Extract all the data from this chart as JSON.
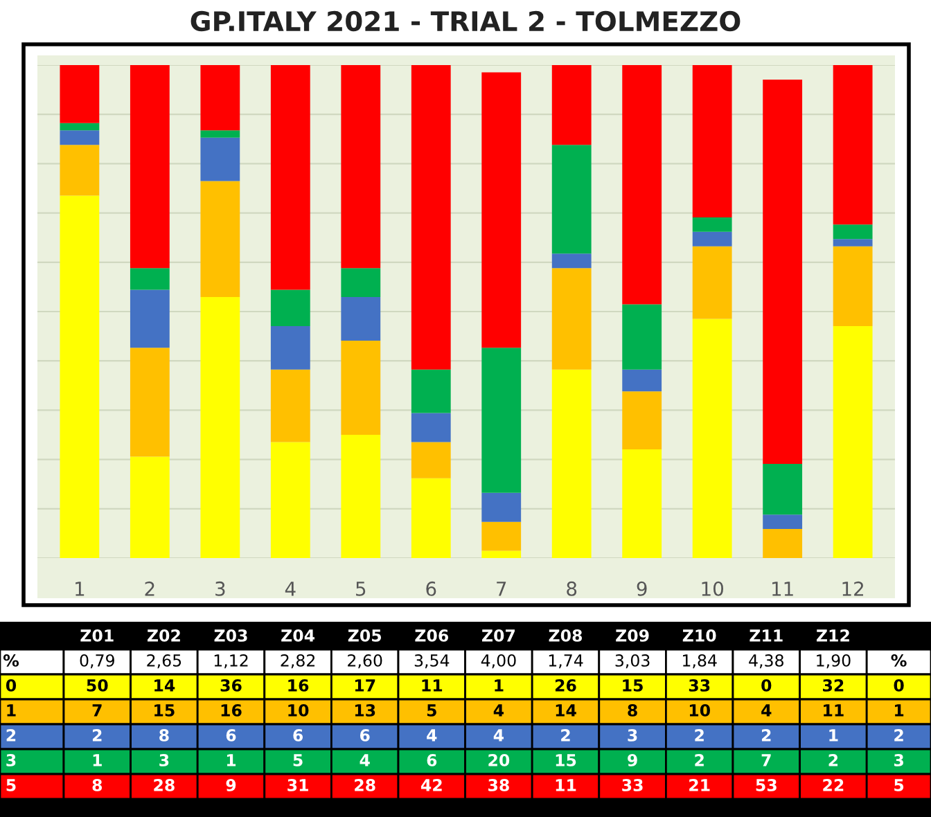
{
  "chart_data": {
    "type": "bar",
    "title": "GP.ITALY 2021 - TRIAL 2 - TOLMEZZO",
    "categories": [
      "1",
      "2",
      "3",
      "4",
      "5",
      "6",
      "7",
      "8",
      "9",
      "10",
      "11",
      "12"
    ],
    "stacked": true,
    "series": [
      {
        "name": "0",
        "color": "#ffff00",
        "values": [
          50,
          14,
          36,
          16,
          17,
          11,
          1,
          26,
          15,
          33,
          0,
          32
        ]
      },
      {
        "name": "1",
        "color": "#ffc000",
        "values": [
          7,
          15,
          16,
          10,
          13,
          5,
          4,
          14,
          8,
          10,
          4,
          11
        ]
      },
      {
        "name": "2",
        "color": "#4472c4",
        "values": [
          2,
          8,
          6,
          6,
          6,
          4,
          4,
          2,
          3,
          2,
          2,
          1
        ]
      },
      {
        "name": "3",
        "color": "#00b050",
        "values": [
          1,
          3,
          1,
          5,
          4,
          6,
          20,
          15,
          9,
          2,
          7,
          2
        ]
      },
      {
        "name": "5",
        "color": "#ff0000",
        "values": [
          8,
          28,
          9,
          31,
          28,
          42,
          38,
          11,
          33,
          21,
          53,
          22
        ]
      }
    ],
    "ylim": [
      0,
      68
    ],
    "yticks": [
      {
        "value": 0,
        "label": null
      },
      {
        "value": 6.8,
        "label": null
      },
      {
        "value": 13.6,
        "label": null
      },
      {
        "value": 20.4,
        "label": null
      },
      {
        "value": 27.2,
        "label": null
      },
      {
        "value": 34,
        "label": null
      },
      {
        "value": 40.8,
        "label": null
      },
      {
        "value": 47.6,
        "label": null
      },
      {
        "value": 54.4,
        "label": null
      },
      {
        "value": 61.2,
        "label": null
      },
      {
        "value": 68,
        "label": null
      }
    ],
    "grid": "y",
    "data_labels": true,
    "legend": "bottom",
    "annotations": [
      "Z01",
      "Z02",
      "Z03",
      "Z04",
      "Z05",
      "Z06",
      "Z07",
      "Z08",
      "Z09",
      "Z10",
      "Z11",
      "Z12",
      "%",
      "0,79",
      "2,65",
      "1,12",
      "2,82",
      "2,60",
      "3,54",
      "4,00",
      "1,74",
      "3,03",
      "1,84",
      "4,38",
      "1,90",
      "%"
    ]
  }
}
